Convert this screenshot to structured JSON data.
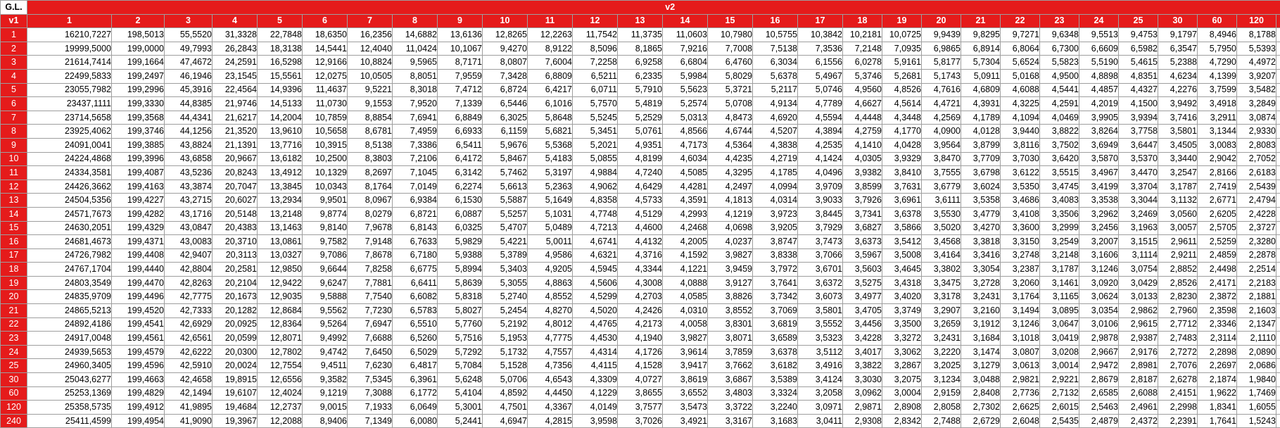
{
  "corner_label": "G.L.",
  "group_header": "v2",
  "row_axis_label": "v1",
  "colors": {
    "header_red": "#e51b1b",
    "header_text": "#ffffff",
    "grid": "#9e9e9e"
  },
  "columns": [
    "1",
    "2",
    "3",
    "4",
    "5",
    "6",
    "7",
    "8",
    "9",
    "10",
    "11",
    "12",
    "13",
    "14",
    "15",
    "16",
    "17",
    "18",
    "19",
    "20",
    "21",
    "22",
    "23",
    "24",
    "25",
    "30",
    "60",
    "120",
    "240"
  ],
  "rows": [
    {
      "label": "1",
      "values": [
        "16210,7227",
        "198,5013",
        "55,5520",
        "31,3328",
        "22,7848",
        "18,6350",
        "16,2356",
        "14,6882",
        "13,6136",
        "12,8265",
        "12,2263",
        "11,7542",
        "11,3735",
        "11,0603",
        "10,7980",
        "10,5755",
        "10,3842",
        "10,2181",
        "10,0725",
        "9,9439",
        "9,8295",
        "9,7271",
        "9,6348",
        "9,5513",
        "9,4753",
        "9,1797",
        "8,4946",
        "8,1788",
        "8,0271"
      ]
    },
    {
      "label": "2",
      "values": [
        "19999,5000",
        "199,0000",
        "49,7993",
        "26,2843",
        "18,3138",
        "14,5441",
        "12,4040",
        "11,0424",
        "10,1067",
        "9,4270",
        "8,9122",
        "8,5096",
        "8,1865",
        "7,9216",
        "7,7008",
        "7,5138",
        "7,3536",
        "7,2148",
        "7,0935",
        "6,9865",
        "6,8914",
        "6,8064",
        "6,7300",
        "6,6609",
        "6,5982",
        "6,3547",
        "5,7950",
        "5,5393",
        "5,4170"
      ]
    },
    {
      "label": "3",
      "values": [
        "21614,7414",
        "199,1664",
        "47,4672",
        "24,2591",
        "16,5298",
        "12,9166",
        "10,8824",
        "9,5965",
        "8,7171",
        "8,0807",
        "7,6004",
        "7,2258",
        "6,9258",
        "6,6804",
        "6,4760",
        "6,3034",
        "6,1556",
        "6,0278",
        "5,9161",
        "5,8177",
        "5,7304",
        "5,6524",
        "5,5823",
        "5,5190",
        "5,4615",
        "5,2388",
        "4,7290",
        "4,4972",
        "4,3866"
      ]
    },
    {
      "label": "4",
      "values": [
        "22499,5833",
        "199,2497",
        "46,1946",
        "23,1545",
        "15,5561",
        "12,0275",
        "10,0505",
        "8,8051",
        "7,9559",
        "7,3428",
        "6,8809",
        "6,5211",
        "6,2335",
        "5,9984",
        "5,8029",
        "5,6378",
        "5,4967",
        "5,3746",
        "5,2681",
        "5,1743",
        "5,0911",
        "5,0168",
        "4,9500",
        "4,8898",
        "4,8351",
        "4,6234",
        "4,1399",
        "3,9207",
        "3,8162"
      ]
    },
    {
      "label": "5",
      "values": [
        "23055,7982",
        "199,2996",
        "45,3916",
        "22,4564",
        "14,9396",
        "11,4637",
        "9,5221",
        "8,3018",
        "7,4712",
        "6,8724",
        "6,4217",
        "6,0711",
        "5,7910",
        "5,5623",
        "5,3721",
        "5,2117",
        "5,0746",
        "4,9560",
        "4,8526",
        "4,7616",
        "4,6809",
        "4,6088",
        "4,5441",
        "4,4857",
        "4,4327",
        "4,2276",
        "3,7599",
        "3,5482",
        "3,4475"
      ]
    },
    {
      "label": "6",
      "values": [
        "23437,1111",
        "199,3330",
        "44,8385",
        "21,9746",
        "14,5133",
        "11,0730",
        "9,1553",
        "7,9520",
        "7,1339",
        "6,5446",
        "6,1016",
        "5,7570",
        "5,4819",
        "5,2574",
        "5,0708",
        "4,9134",
        "4,7789",
        "4,6627",
        "4,5614",
        "4,4721",
        "4,3931",
        "4,3225",
        "4,2591",
        "4,2019",
        "4,1500",
        "3,9492",
        "3,4918",
        "3,2849",
        "3,1865"
      ]
    },
    {
      "label": "7",
      "values": [
        "23714,5658",
        "199,3568",
        "44,4341",
        "21,6217",
        "14,2004",
        "10,7859",
        "8,8854",
        "7,6941",
        "6,8849",
        "6,3025",
        "5,8648",
        "5,5245",
        "5,2529",
        "5,0313",
        "4,8473",
        "4,6920",
        "4,5594",
        "4,4448",
        "4,3448",
        "4,2569",
        "4,1789",
        "4,1094",
        "4,0469",
        "3,9905",
        "3,9394",
        "3,7416",
        "3,2911",
        "3,0874",
        "2,9906"
      ]
    },
    {
      "label": "8",
      "values": [
        "23925,4062",
        "199,3746",
        "44,1256",
        "21,3520",
        "13,9610",
        "10,5658",
        "8,6781",
        "7,4959",
        "6,6933",
        "6,1159",
        "5,6821",
        "5,3451",
        "5,0761",
        "4,8566",
        "4,6744",
        "4,5207",
        "4,3894",
        "4,2759",
        "4,1770",
        "4,0900",
        "4,0128",
        "3,9440",
        "3,8822",
        "3,8264",
        "3,7758",
        "3,5801",
        "3,1344",
        "2,9330",
        "2,8371"
      ]
    },
    {
      "label": "9",
      "values": [
        "24091,0041",
        "199,3885",
        "43,8824",
        "21,1391",
        "13,7716",
        "10,3915",
        "8,5138",
        "7,3386",
        "6,5411",
        "5,9676",
        "5,5368",
        "5,2021",
        "4,9351",
        "4,7173",
        "4,5364",
        "4,3838",
        "4,2535",
        "4,1410",
        "4,0428",
        "3,9564",
        "3,8799",
        "3,8116",
        "3,7502",
        "3,6949",
        "3,6447",
        "3,4505",
        "3,0083",
        "2,8083",
        "2,7131"
      ]
    },
    {
      "label": "10",
      "values": [
        "24224,4868",
        "199,3996",
        "43,6858",
        "20,9667",
        "13,6182",
        "10,2500",
        "8,3803",
        "7,2106",
        "6,4172",
        "5,8467",
        "5,4183",
        "5,0855",
        "4,8199",
        "4,6034",
        "4,4235",
        "4,2719",
        "4,1424",
        "4,0305",
        "3,9329",
        "3,8470",
        "3,7709",
        "3,7030",
        "3,6420",
        "3,5870",
        "3,5370",
        "3,3440",
        "2,9042",
        "2,7052",
        "2,6105"
      ]
    },
    {
      "label": "11",
      "values": [
        "24334,3581",
        "199,4087",
        "43,5236",
        "20,8243",
        "13,4912",
        "10,1329",
        "8,2697",
        "7,1045",
        "6,3142",
        "5,7462",
        "5,3197",
        "4,9884",
        "4,7240",
        "4,5085",
        "4,3295",
        "4,1785",
        "4,0496",
        "3,9382",
        "3,8410",
        "3,7555",
        "3,6798",
        "3,6122",
        "3,5515",
        "3,4967",
        "3,4470",
        "3,2547",
        "2,8166",
        "2,6183",
        "2,5239"
      ]
    },
    {
      "label": "12",
      "values": [
        "24426,3662",
        "199,4163",
        "43,3874",
        "20,7047",
        "13,3845",
        "10,0343",
        "8,1764",
        "7,0149",
        "6,2274",
        "5,6613",
        "5,2363",
        "4,9062",
        "4,6429",
        "4,4281",
        "4,2497",
        "4,0994",
        "3,9709",
        "3,8599",
        "3,7631",
        "3,6779",
        "3,6024",
        "3,5350",
        "3,4745",
        "3,4199",
        "3,3704",
        "3,1787",
        "2,7419",
        "2,5439",
        "2,4496"
      ]
    },
    {
      "label": "13",
      "values": [
        "24504,5356",
        "199,4227",
        "43,2715",
        "20,6027",
        "13,2934",
        "9,9501",
        "8,0967",
        "6,9384",
        "6,1530",
        "5,5887",
        "5,1649",
        "4,8358",
        "4,5733",
        "4,3591",
        "4,1813",
        "4,0314",
        "3,9033",
        "3,7926",
        "3,6961",
        "3,6111",
        "3,5358",
        "3,4686",
        "3,4083",
        "3,3538",
        "3,3044",
        "3,1132",
        "2,6771",
        "2,4794",
        "2,3852"
      ]
    },
    {
      "label": "14",
      "values": [
        "24571,7673",
        "199,4282",
        "43,1716",
        "20,5148",
        "13,2148",
        "9,8774",
        "8,0279",
        "6,8721",
        "6,0887",
        "5,5257",
        "5,1031",
        "4,7748",
        "4,5129",
        "4,2993",
        "4,1219",
        "3,9723",
        "3,8445",
        "3,7341",
        "3,6378",
        "3,5530",
        "3,4779",
        "3,4108",
        "3,3506",
        "3,2962",
        "3,2469",
        "3,0560",
        "2,6205",
        "2,4228",
        "2,3285"
      ]
    },
    {
      "label": "15",
      "values": [
        "24630,2051",
        "199,4329",
        "43,0847",
        "20,4383",
        "13,1463",
        "9,8140",
        "7,9678",
        "6,8143",
        "6,0325",
        "5,4707",
        "5,0489",
        "4,7213",
        "4,4600",
        "4,2468",
        "4,0698",
        "3,9205",
        "3,7929",
        "3,6827",
        "3,5866",
        "3,5020",
        "3,4270",
        "3,3600",
        "3,2999",
        "3,2456",
        "3,1963",
        "3,0057",
        "2,5705",
        "2,3727",
        "2,2783"
      ]
    },
    {
      "label": "16",
      "values": [
        "24681,4673",
        "199,4371",
        "43,0083",
        "20,3710",
        "13,0861",
        "9,7582",
        "7,9148",
        "6,7633",
        "5,9829",
        "5,4221",
        "5,0011",
        "4,6741",
        "4,4132",
        "4,2005",
        "4,0237",
        "3,8747",
        "3,7473",
        "3,6373",
        "3,5412",
        "3,4568",
        "3,3818",
        "3,3150",
        "3,2549",
        "3,2007",
        "3,1515",
        "2,9611",
        "2,5259",
        "2,3280",
        "2,2335"
      ]
    },
    {
      "label": "17",
      "values": [
        "24726,7982",
        "199,4408",
        "42,9407",
        "20,3113",
        "13,0327",
        "9,7086",
        "7,8678",
        "6,7180",
        "5,9388",
        "5,3789",
        "4,9586",
        "4,6321",
        "4,3716",
        "4,1592",
        "3,9827",
        "3,8338",
        "3,7066",
        "3,5967",
        "3,5008",
        "3,4164",
        "3,3416",
        "3,2748",
        "3,2148",
        "3,1606",
        "3,1114",
        "2,9211",
        "2,4859",
        "2,2878",
        "2,1931"
      ]
    },
    {
      "label": "18",
      "values": [
        "24767,1704",
        "199,4440",
        "42,8804",
        "20,2581",
        "12,9850",
        "9,6644",
        "7,8258",
        "6,6775",
        "5,8994",
        "5,3403",
        "4,9205",
        "4,5945",
        "4,3344",
        "4,1221",
        "3,9459",
        "3,7972",
        "3,6701",
        "3,5603",
        "3,4645",
        "3,3802",
        "3,3054",
        "3,2387",
        "3,1787",
        "3,1246",
        "3,0754",
        "2,8852",
        "2,4498",
        "2,2514",
        "2,1565"
      ]
    },
    {
      "label": "19",
      "values": [
        "24803,3549",
        "199,4470",
        "42,8263",
        "20,2104",
        "12,9422",
        "9,6247",
        "7,7881",
        "6,6411",
        "5,8639",
        "5,3055",
        "4,8863",
        "4,5606",
        "4,3008",
        "4,0888",
        "3,9127",
        "3,7641",
        "3,6372",
        "3,5275",
        "3,4318",
        "3,3475",
        "3,2728",
        "3,2060",
        "3,1461",
        "3,0920",
        "3,0429",
        "2,8526",
        "2,4171",
        "2,2183",
        "2,1232"
      ]
    },
    {
      "label": "20",
      "values": [
        "24835,9709",
        "199,4496",
        "42,7775",
        "20,1673",
        "12,9035",
        "9,5888",
        "7,7540",
        "6,6082",
        "5,8318",
        "5,2740",
        "4,8552",
        "4,5299",
        "4,2703",
        "4,0585",
        "3,8826",
        "3,7342",
        "3,6073",
        "3,4977",
        "3,4020",
        "3,3178",
        "3,2431",
        "3,1764",
        "3,1165",
        "3,0624",
        "3,0133",
        "2,8230",
        "2,3872",
        "2,1881",
        "2,0927"
      ]
    },
    {
      "label": "21",
      "values": [
        "24865,5213",
        "199,4520",
        "42,7333",
        "20,1282",
        "12,8684",
        "9,5562",
        "7,7230",
        "6,5783",
        "5,8027",
        "5,2454",
        "4,8270",
        "4,5020",
        "4,2426",
        "4,0310",
        "3,8552",
        "3,7069",
        "3,5801",
        "3,4705",
        "3,3749",
        "3,2907",
        "3,2160",
        "3,1494",
        "3,0895",
        "3,0354",
        "2,9862",
        "2,7960",
        "2,3598",
        "2,1603",
        "2,0647"
      ]
    },
    {
      "label": "22",
      "values": [
        "24892,4186",
        "199,4541",
        "42,6929",
        "20,0925",
        "12,8364",
        "9,5264",
        "7,6947",
        "6,5510",
        "5,7760",
        "5,2192",
        "4,8012",
        "4,4765",
        "4,2173",
        "4,0058",
        "3,8301",
        "3,6819",
        "3,5552",
        "3,4456",
        "3,3500",
        "3,2659",
        "3,1912",
        "3,1246",
        "3,0647",
        "3,0106",
        "2,9615",
        "2,7712",
        "2,3346",
        "2,1347",
        "2,0388"
      ]
    },
    {
      "label": "23",
      "values": [
        "24917,0048",
        "199,4561",
        "42,6561",
        "20,0599",
        "12,8071",
        "9,4992",
        "7,6688",
        "6,5260",
        "5,7516",
        "5,1953",
        "4,7775",
        "4,4530",
        "4,1940",
        "3,9827",
        "3,8071",
        "3,6589",
        "3,5323",
        "3,4228",
        "3,3272",
        "3,2431",
        "3,1684",
        "3,1018",
        "3,0419",
        "2,9878",
        "2,9387",
        "2,7483",
        "2,3114",
        "2,1110",
        "2,0148"
      ]
    },
    {
      "label": "24",
      "values": [
        "24939,5653",
        "199,4579",
        "42,6222",
        "20,0300",
        "12,7802",
        "9,4742",
        "7,6450",
        "6,5029",
        "5,7292",
        "5,1732",
        "4,7557",
        "4,4314",
        "4,1726",
        "3,9614",
        "3,7859",
        "3,6378",
        "3,5112",
        "3,4017",
        "3,3062",
        "3,2220",
        "3,1474",
        "3,0807",
        "3,0208",
        "2,9667",
        "2,9176",
        "2,7272",
        "2,2898",
        "2,0890",
        "1,9925"
      ]
    },
    {
      "label": "25",
      "values": [
        "24960,3405",
        "199,4596",
        "42,5910",
        "20,0024",
        "12,7554",
        "9,4511",
        "7,6230",
        "6,4817",
        "5,7084",
        "5,1528",
        "4,7356",
        "4,4115",
        "4,1528",
        "3,9417",
        "3,7662",
        "3,6182",
        "3,4916",
        "3,3822",
        "3,2867",
        "3,2025",
        "3,1279",
        "3,0613",
        "3,0014",
        "2,9472",
        "2,8981",
        "2,7076",
        "2,2697",
        "2,0686",
        "1,9717"
      ]
    },
    {
      "label": "30",
      "values": [
        "25043,6277",
        "199,4663",
        "42,4658",
        "19,8915",
        "12,6556",
        "9,3582",
        "7,5345",
        "6,3961",
        "5,6248",
        "5,0706",
        "4,6543",
        "4,3309",
        "4,0727",
        "3,8619",
        "3,6867",
        "3,5389",
        "3,4124",
        "3,3030",
        "3,2075",
        "3,1234",
        "3,0488",
        "2,9821",
        "2,9221",
        "2,8679",
        "2,8187",
        "2,6278",
        "2,1874",
        "1,9840",
        "1,8856"
      ]
    },
    {
      "label": "60",
      "values": [
        "25253,1369",
        "199,4829",
        "42,1494",
        "19,6107",
        "12,4024",
        "9,1219",
        "7,3088",
        "6,1772",
        "5,4104",
        "4,8592",
        "4,4450",
        "4,1229",
        "3,8655",
        "3,6552",
        "3,4803",
        "3,3324",
        "3,2058",
        "3,0962",
        "3,0004",
        "2,9159",
        "2,8408",
        "2,7736",
        "2,7132",
        "2,6585",
        "2,6088",
        "2,4151",
        "1,9622",
        "1,7469",
        "1,6401"
      ]
    },
    {
      "label": "120",
      "values": [
        "25358,5735",
        "199,4912",
        "41,9895",
        "19,4684",
        "12,2737",
        "9,0015",
        "7,1933",
        "6,0649",
        "5,3001",
        "4,7501",
        "4,3367",
        "4,0149",
        "3,7577",
        "3,5473",
        "3,3722",
        "3,2240",
        "3,0971",
        "2,9871",
        "2,8908",
        "2,8058",
        "2,7302",
        "2,6625",
        "2,6015",
        "2,5463",
        "2,4961",
        "2,2998",
        "1,8341",
        "1,6055",
        "1,4879"
      ]
    },
    {
      "label": "240",
      "values": [
        "25411,4599",
        "199,4954",
        "41,9090",
        "19,3967",
        "12,2088",
        "8,9406",
        "7,1349",
        "6,0080",
        "5,2441",
        "4,6947",
        "4,2815",
        "3,9598",
        "3,7026",
        "3,4921",
        "3,3167",
        "3,1683",
        "3,0411",
        "2,9308",
        "2,8342",
        "2,7488",
        "2,6729",
        "2,6048",
        "2,5435",
        "2,4879",
        "2,4372",
        "2,2391",
        "1,7641",
        "1,5243",
        "1,3961"
      ]
    }
  ]
}
